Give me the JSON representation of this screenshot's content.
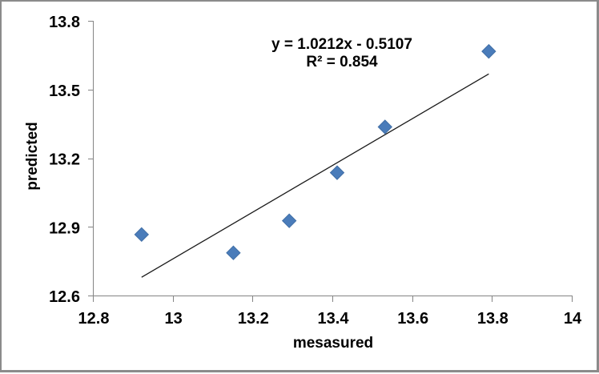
{
  "window": {
    "background": "#ffffff",
    "border_color": "#8b8b8b"
  },
  "chart_data": {
    "type": "scatter",
    "xlabel": "mesasured",
    "ylabel": "predicted",
    "xlim": [
      12.8,
      14
    ],
    "ylim": [
      12.6,
      13.8
    ],
    "x_ticks": [
      12.8,
      13,
      13.2,
      13.4,
      13.6,
      13.8,
      14
    ],
    "y_ticks": [
      12.6,
      12.9,
      13.2,
      13.5,
      13.8
    ],
    "points": [
      {
        "x": 12.92,
        "y": 12.87
      },
      {
        "x": 13.15,
        "y": 12.79
      },
      {
        "x": 13.29,
        "y": 12.93
      },
      {
        "x": 13.41,
        "y": 13.14
      },
      {
        "x": 13.53,
        "y": 13.34
      },
      {
        "x": 13.79,
        "y": 13.67
      }
    ],
    "trendline": {
      "slope": 1.0212,
      "intercept": -0.5107,
      "x_start": 12.92,
      "x_end": 13.79
    },
    "annotation": {
      "equation": "y = 1.0212x - 0.5107",
      "r_squared": "R² = 0.854"
    },
    "grid": false,
    "legend": null,
    "marker_color": "#4a7cba",
    "marker_border_color": "#416fa6",
    "trendline_color": "#1a1a1a",
    "axis_color": "#848484",
    "text_color": "#000000"
  }
}
